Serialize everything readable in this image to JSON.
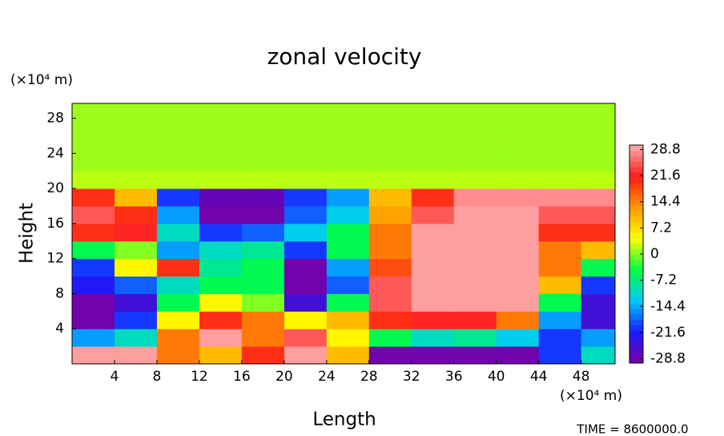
{
  "chart_data": {
    "type": "heatmap",
    "title": "zonal velocity",
    "x_label": "Length",
    "y_label": "Height",
    "x_unit": "(×10⁴ m)",
    "y_unit": "(×10⁴ m)",
    "time_label": "TIME = 8600000.0",
    "xlim": [
      0,
      51.2
    ],
    "ylim": [
      0,
      29.7
    ],
    "xticks": [
      4,
      8,
      12,
      16,
      20,
      24,
      28,
      32,
      36,
      40,
      44,
      48
    ],
    "yticks": [
      4,
      8,
      12,
      16,
      20,
      24,
      28
    ],
    "x": [
      2,
      6,
      10,
      14,
      18,
      22,
      26,
      30,
      34,
      38,
      42,
      46,
      50
    ],
    "y": [
      1,
      3,
      5,
      7,
      9,
      11,
      13,
      15,
      17,
      19,
      21,
      23,
      25,
      27,
      29
    ],
    "z": [
      [
        29,
        29,
        15,
        10,
        20,
        29,
        10,
        -29,
        -29,
        -29,
        -29,
        -20,
        -10
      ],
      [
        -15,
        -10,
        15,
        29,
        15,
        25,
        5,
        -5,
        -10,
        -8,
        -12,
        -20,
        -15
      ],
      [
        -29,
        -20,
        5,
        20,
        15,
        5,
        10,
        20,
        22,
        22,
        15,
        -15,
        -25
      ],
      [
        -29,
        -25,
        -5,
        5,
        0,
        -25,
        -5,
        25,
        29,
        29,
        29,
        -5,
        -25
      ],
      [
        -22,
        -18,
        -10,
        -5,
        -5,
        -29,
        -18,
        25,
        29,
        29,
        29,
        10,
        -20
      ],
      [
        -20,
        5,
        20,
        -8,
        -5,
        -29,
        -15,
        18,
        29,
        29,
        29,
        15,
        -5
      ],
      [
        -5,
        0,
        -15,
        -10,
        -8,
        -20,
        -5,
        15,
        29,
        29,
        29,
        15,
        10
      ],
      [
        20,
        22,
        -10,
        -20,
        -18,
        -12,
        -5,
        15,
        29,
        29,
        29,
        20,
        20
      ],
      [
        25,
        20,
        -15,
        -29,
        -29,
        -18,
        -12,
        12,
        25,
        29,
        29,
        25,
        25
      ],
      [
        20,
        10,
        -20,
        -28,
        -28,
        -20,
        -15,
        10,
        20,
        28,
        28,
        28,
        28
      ],
      [
        2,
        2,
        2,
        2,
        2,
        2,
        2,
        2,
        2,
        2,
        2,
        2,
        2
      ],
      [
        1,
        1,
        1,
        1,
        1,
        1,
        1,
        1,
        1,
        1,
        1,
        1,
        1
      ],
      [
        1,
        1,
        1,
        1,
        1,
        1,
        1,
        1,
        1,
        1,
        1,
        1,
        1
      ],
      [
        1,
        1,
        1,
        1,
        1,
        1,
        1,
        1,
        1,
        1,
        1,
        1,
        1
      ],
      [
        1,
        1,
        1,
        1,
        1,
        1,
        1,
        1,
        1,
        1,
        1,
        1,
        1
      ]
    ],
    "clim": [
      -30,
      30
    ],
    "colormap": [
      "#7b00a0",
      "#1a1aff",
      "#00c8ff",
      "#00ff40",
      "#ffff00",
      "#ff9900",
      "#ff1a1a",
      "#ffb0b0"
    ],
    "cticks": [
      28.8,
      21.6,
      14.4,
      7.2,
      0,
      -7.2,
      -14.4,
      -21.6,
      -28.8
    ]
  }
}
